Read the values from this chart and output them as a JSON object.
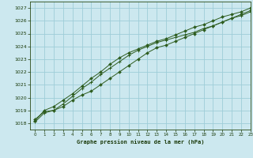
{
  "title": "Graphe pression niveau de la mer (hPa)",
  "bg_color": "#cce8ef",
  "grid_color": "#9ecdd8",
  "line_color": "#2d5c1e",
  "marker_color": "#2d5c1e",
  "xlim": [
    -0.5,
    23
  ],
  "ylim": [
    1017.5,
    1027.5
  ],
  "xticks": [
    0,
    1,
    2,
    3,
    4,
    5,
    6,
    7,
    8,
    9,
    10,
    11,
    12,
    13,
    14,
    15,
    16,
    17,
    18,
    19,
    20,
    21,
    22,
    23
  ],
  "yticks": [
    1018,
    1019,
    1020,
    1021,
    1022,
    1023,
    1024,
    1025,
    1026,
    1027
  ],
  "series1_x": [
    0,
    1,
    2,
    3,
    4,
    5,
    6,
    7,
    8,
    9,
    10,
    11,
    12,
    13,
    14,
    15,
    16,
    17,
    18,
    19,
    20,
    21,
    22,
    23
  ],
  "series1_y": [
    1018.3,
    1018.9,
    1019.0,
    1019.3,
    1019.8,
    1020.2,
    1020.5,
    1021.0,
    1021.5,
    1022.0,
    1022.5,
    1023.0,
    1023.5,
    1023.9,
    1024.1,
    1024.4,
    1024.7,
    1025.0,
    1025.3,
    1025.6,
    1025.9,
    1026.2,
    1026.5,
    1026.8
  ],
  "series2_x": [
    0,
    1,
    2,
    3,
    4,
    5,
    6,
    7,
    8,
    9,
    10,
    11,
    12,
    13,
    14,
    15,
    16,
    17,
    18,
    19,
    20,
    21,
    22,
    23
  ],
  "series2_y": [
    1018.1,
    1018.8,
    1019.0,
    1019.5,
    1020.1,
    1020.7,
    1021.2,
    1021.8,
    1022.3,
    1022.8,
    1023.3,
    1023.7,
    1024.0,
    1024.3,
    1024.5,
    1024.7,
    1024.9,
    1025.1,
    1025.4,
    1025.6,
    1025.9,
    1026.2,
    1026.4,
    1026.7
  ],
  "series3_x": [
    0,
    1,
    2,
    3,
    4,
    5,
    6,
    7,
    8,
    9,
    10,
    11,
    12,
    13,
    14,
    15,
    16,
    17,
    18,
    19,
    20,
    21,
    22,
    23
  ],
  "series3_y": [
    1018.2,
    1019.0,
    1019.3,
    1019.8,
    1020.3,
    1020.9,
    1021.5,
    1022.0,
    1022.6,
    1023.1,
    1023.5,
    1023.8,
    1024.1,
    1024.4,
    1024.6,
    1024.9,
    1025.2,
    1025.5,
    1025.7,
    1026.0,
    1026.3,
    1026.5,
    1026.7,
    1027.0
  ]
}
